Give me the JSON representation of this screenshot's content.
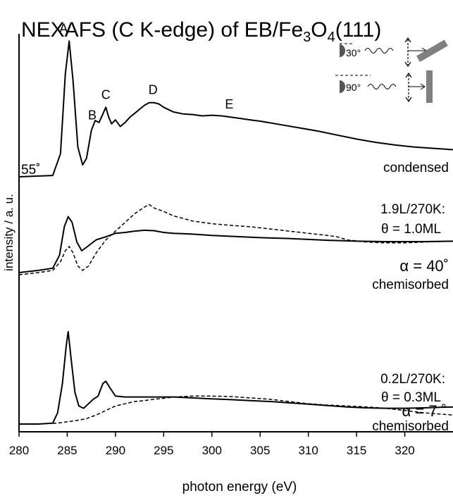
{
  "chart_data": {
    "type": "line",
    "title_parts": [
      "NEXAFS (C K-edge) of EB/Fe",
      "3",
      "O",
      "4",
      "(111)"
    ],
    "xlabel": "photon energy (eV)",
    "ylabel": "intensity / a. u.",
    "xlim": [
      280,
      325
    ],
    "x_ticks": [
      280,
      285,
      290,
      295,
      300,
      305,
      310,
      315,
      320
    ],
    "grid": false,
    "inset": {
      "labels": [
        "30°",
        "90°"
      ]
    },
    "panels": [
      {
        "id": "condensed",
        "angle_label": "55˚",
        "label": "condensed",
        "peaks": [
          {
            "name": "A",
            "x": 285.2
          },
          {
            "name": "B",
            "x": 287.6
          },
          {
            "name": "C",
            "x": 289.0
          },
          {
            "name": "D",
            "x": 293.9
          },
          {
            "name": "E",
            "x": 301.8
          }
        ],
        "series": [
          {
            "style": "solid",
            "x": [
              280,
              283.5,
              284.3,
              284.8,
              285.2,
              285.6,
              286.1,
              286.6,
              287.0,
              287.5,
              287.9,
              288.3,
              288.7,
              289.0,
              289.3,
              289.6,
              290.0,
              290.5,
              291.0,
              291.5,
              292.0,
              292.5,
              293.0,
              293.5,
              294.0,
              294.5,
              295.0,
              296.0,
              297.0,
              298.0,
              299.0,
              300.0,
              301.0,
              302.0,
              303.0,
              304.0,
              305.0,
              307.0,
              309.0,
              311.0,
              313.0,
              315.0,
              317.0,
              319.0,
              321.0,
              323.0,
              325.0
            ],
            "y": [
              0.0,
              0.02,
              0.35,
              1.55,
              2.05,
              1.45,
              0.45,
              0.18,
              0.28,
              0.7,
              0.85,
              0.82,
              0.95,
              1.05,
              0.9,
              0.8,
              0.86,
              0.76,
              0.82,
              0.9,
              0.96,
              1.02,
              1.08,
              1.12,
              1.12,
              1.1,
              1.05,
              0.98,
              0.95,
              0.94,
              0.92,
              0.93,
              0.92,
              0.9,
              0.88,
              0.86,
              0.84,
              0.79,
              0.74,
              0.69,
              0.63,
              0.57,
              0.52,
              0.48,
              0.45,
              0.43,
              0.41
            ]
          }
        ]
      },
      {
        "id": "1.9L",
        "dose_label": "1.9L/270K:",
        "coverage_label": "θ = 1.0ML",
        "alpha_label": "α = 40˚",
        "label": "chemisorbed",
        "series": [
          {
            "style": "solid",
            "x": [
              280,
              282,
              283.5,
              284.2,
              284.7,
              285.1,
              285.5,
              286.0,
              286.5,
              287.0,
              288.0,
              289.0,
              290.0,
              291.0,
              292.0,
              293.0,
              294.0,
              295.0,
              296.0,
              298.0,
              300.0,
              302.0,
              305.0,
              308.0,
              310.0,
              312.0,
              315.0,
              318.0,
              320.0,
              322.0,
              325.0
            ],
            "y": [
              0.0,
              0.05,
              0.1,
              0.4,
              1.05,
              1.28,
              1.15,
              0.7,
              0.5,
              0.58,
              0.75,
              0.82,
              0.9,
              0.92,
              0.95,
              0.97,
              0.96,
              0.92,
              0.9,
              0.88,
              0.85,
              0.83,
              0.8,
              0.78,
              0.76,
              0.74,
              0.72,
              0.71,
              0.71,
              0.71,
              0.72
            ]
          },
          {
            "style": "dashed",
            "x": [
              280,
              282,
              283.5,
              284.3,
              284.8,
              285.2,
              285.6,
              286.1,
              286.6,
              287.2,
              288.0,
              289.0,
              290.0,
              291.0,
              292.0,
              293.0,
              293.5,
              294.0,
              295.0,
              296.0,
              298.0,
              300.0,
              302.0,
              304.0,
              306.0,
              308.0,
              310.0,
              312.0,
              313.0,
              314.0,
              316.0,
              318.0,
              320.0,
              322.0,
              325.0
            ],
            "y": [
              -0.05,
              0.0,
              0.05,
              0.25,
              0.5,
              0.6,
              0.45,
              0.15,
              0.05,
              0.15,
              0.45,
              0.75,
              0.95,
              1.15,
              1.35,
              1.5,
              1.56,
              1.48,
              1.4,
              1.3,
              1.18,
              1.12,
              1.08,
              1.05,
              1.0,
              0.95,
              0.9,
              0.85,
              0.82,
              0.75,
              0.7,
              0.68,
              0.68,
              0.7,
              0.72
            ]
          }
        ]
      },
      {
        "id": "0.2L",
        "dose_label": "0.2L/270K:",
        "coverage_label": "θ = 0.3ML",
        "alpha_label": "α = 7 ˚",
        "label": "chemisorbed",
        "series": [
          {
            "style": "solid",
            "x": [
              280,
              282,
              283.5,
              284.0,
              284.5,
              284.9,
              285.1,
              285.4,
              285.8,
              286.2,
              286.7,
              287.2,
              287.7,
              288.2,
              288.7,
              289.0,
              289.5,
              290.0,
              291.0,
              292.0,
              293.0,
              294.0,
              295.0,
              296.0,
              298.0,
              300.0,
              302.0,
              304.0,
              306.0,
              308.0,
              310.0,
              312.0,
              314.0,
              316.0,
              318.0,
              320.0,
              322.0,
              325.0
            ],
            "y": [
              0.0,
              0.0,
              0.02,
              0.25,
              0.9,
              1.75,
              2.05,
              1.45,
              0.7,
              0.4,
              0.35,
              0.45,
              0.55,
              0.62,
              0.9,
              0.95,
              0.78,
              0.62,
              0.6,
              0.6,
              0.6,
              0.6,
              0.6,
              0.6,
              0.58,
              0.56,
              0.54,
              0.52,
              0.5,
              0.47,
              0.44,
              0.41,
              0.38,
              0.36,
              0.35,
              0.35,
              0.36,
              0.38
            ]
          },
          {
            "style": "dashed",
            "x": [
              280,
              282,
              284,
              285,
              286,
              287,
              288,
              289,
              290,
              291,
              292,
              293,
              294,
              295,
              296,
              298,
              300,
              302,
              304,
              306,
              308,
              310,
              312,
              314,
              316,
              318,
              320,
              322,
              325
            ],
            "y": [
              0.0,
              0.0,
              0.02,
              0.05,
              0.08,
              0.12,
              0.2,
              0.3,
              0.4,
              0.45,
              0.5,
              0.52,
              0.55,
              0.57,
              0.6,
              0.62,
              0.62,
              0.61,
              0.58,
              0.55,
              0.5,
              0.45,
              0.42,
              0.4,
              0.38,
              0.35,
              0.3,
              0.25,
              0.2
            ]
          }
        ]
      }
    ]
  }
}
